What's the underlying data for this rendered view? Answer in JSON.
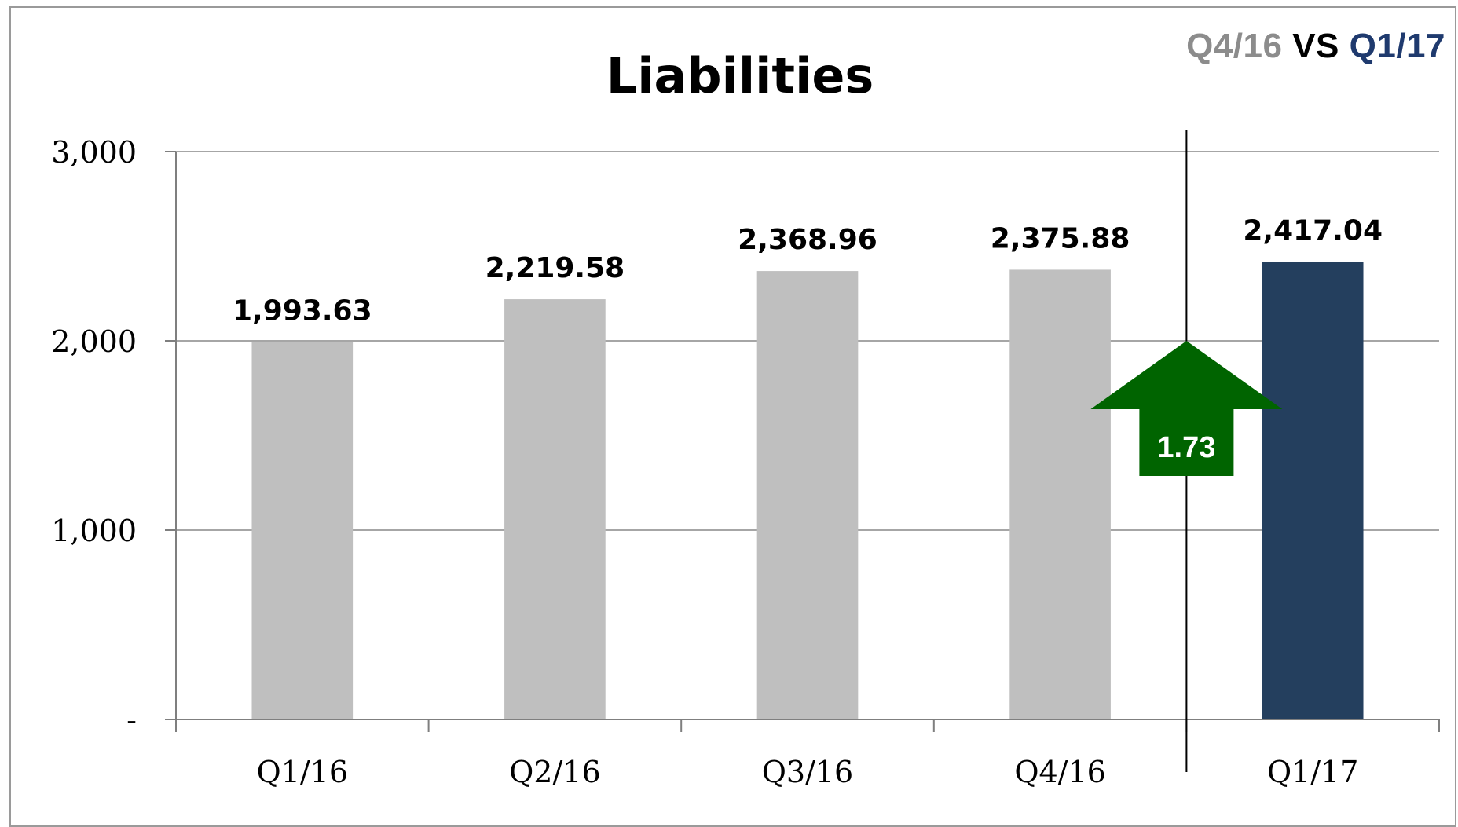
{
  "chart_data": {
    "type": "bar",
    "title": "Liabilities",
    "categories": [
      "Q1/16",
      "Q2/16",
      "Q3/16",
      "Q4/16",
      "Q1/17"
    ],
    "values": [
      1993.63,
      2219.58,
      2368.96,
      2375.88,
      2417.04
    ],
    "value_labels": [
      "1,993.63",
      "2,219.58",
      "2,368.96",
      "2,375.88",
      "2,417.04"
    ],
    "ylim": [
      0,
      3000
    ],
    "yticks": [
      0,
      1000,
      2000,
      3000
    ],
    "ytick_labels": [
      "-",
      "1,000",
      "2,000",
      "3,000"
    ],
    "grid": true,
    "colors": {
      "default_bar": "#bfbfbf",
      "highlight_bar": "#243f5e",
      "arrow": "#006400",
      "grid": "#a6a6a6"
    },
    "highlight_index": 4,
    "change": {
      "label": "1.73",
      "direction": "up"
    }
  },
  "comparison": {
    "previous": "Q4/16",
    "vs": "VS",
    "current": "Q1/17"
  }
}
